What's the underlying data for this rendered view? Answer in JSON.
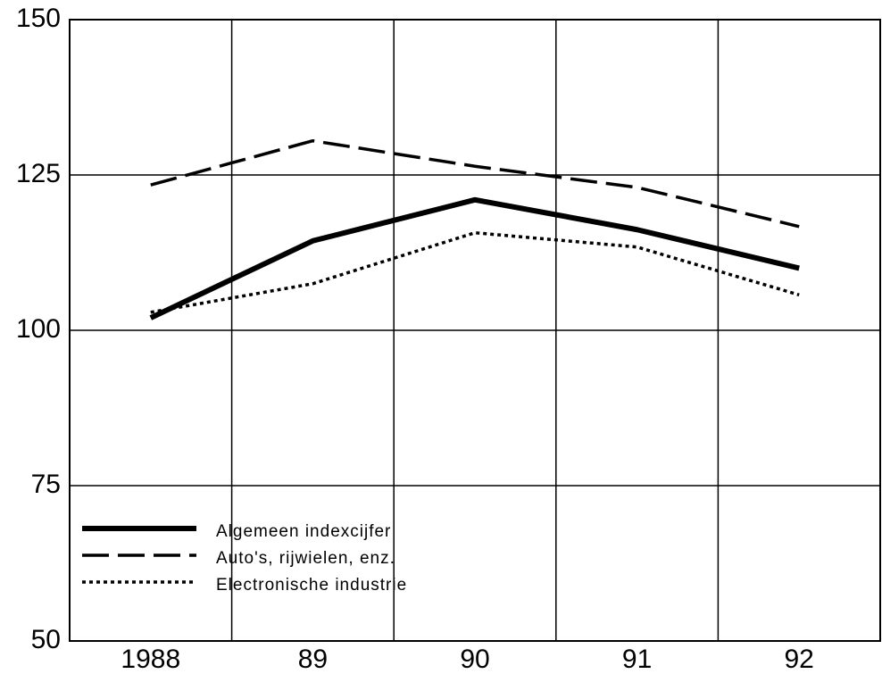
{
  "chart_data": {
    "type": "line",
    "categories": [
      "1988",
      "89",
      "90",
      "91",
      "92"
    ],
    "series": [
      {
        "name": "Algemeen indexcijfer",
        "color": "#000000",
        "linestyle": "solid",
        "values": [
          102,
          114.4,
          121,
          116.2,
          110
        ]
      },
      {
        "name": "Auto's, rijwielen, enz.",
        "color": "#000000",
        "linestyle": "dashed",
        "values": [
          123.4,
          130.5,
          126.4,
          123,
          116.7
        ]
      },
      {
        "name": "Electronische industrie",
        "color": "#000000",
        "linestyle": "dotted",
        "values": [
          102.9,
          107.5,
          115.7,
          113.4,
          105.7
        ]
      }
    ],
    "ylim": [
      50,
      150
    ],
    "yticks": [
      50,
      75,
      100,
      125,
      150
    ],
    "grid": true,
    "legend": "lower left"
  }
}
